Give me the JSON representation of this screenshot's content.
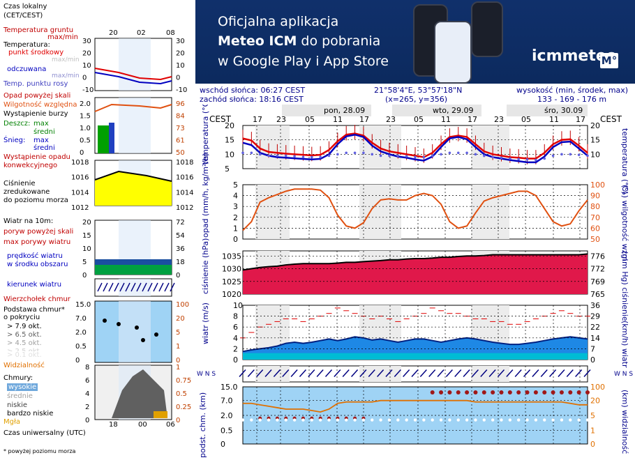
{
  "legend": {
    "time_zone": [
      "Czas lokalny",
      "(CET/CEST)"
    ],
    "top_hours": [
      "20",
      "02",
      "08"
    ],
    "temp_ground": [
      "Temperatura gruntu",
      "max/min"
    ],
    "temp_title": "Temperatura:",
    "temp_mid": "punkt środkowy",
    "temp_maxmin": "max/min",
    "temp_feel": "odczuwana",
    "temp_feel_maxmin": "max/min",
    "temp_dew": "Temp. punktu rosy",
    "temp_left_ticks": [
      "30",
      "20",
      "10",
      "0",
      "-10"
    ],
    "temp_right_ticks": [
      "30",
      "20",
      "10",
      "0",
      "-10"
    ],
    "precip_title": "Opad powyżej skali",
    "humidity": "Wilgotność względna",
    "storm": "Wystąpienie burzy",
    "rain_label": "Deszcz:",
    "rain_max": "max",
    "rain_mean": "średni",
    "snow_label": "Śnieg:",
    "snow_max": "max",
    "snow_mean": "średni",
    "precip_occ": [
      "Wystąpienie opadu",
      "konwekcyjnego"
    ],
    "precip_left_ticks": [
      "2.0",
      "1.5",
      "1.0",
      "0.5",
      "0"
    ],
    "precip_right_ticks": [
      "96",
      "84",
      "73",
      "61",
      "50"
    ],
    "pressure": [
      "Ciśnienie",
      "zredukowane",
      "do poziomu morza"
    ],
    "pressure_left_ticks": [
      "1018",
      "1016",
      "1014",
      "1012"
    ],
    "pressure_right_ticks": [
      "1018",
      "1016",
      "1014",
      "1012"
    ],
    "wind_title": "Wiatr na 10m:",
    "wind_gust_over": "poryw powyżej skali",
    "wind_gust_max": "max porywy wiatru",
    "wind_speed": [
      "prędkość wiatru",
      "w środku obszaru"
    ],
    "wind_left_ticks": [
      "20",
      "15",
      "10",
      "5",
      "0"
    ],
    "wind_right_ticks": [
      "72",
      "54",
      "36",
      "18",
      "0"
    ],
    "wind_dir": "kierunek wiatru",
    "cloud_top": "Wierzchołek chmur",
    "cloud_base": [
      "Podstawa chmur*",
      "o pokryciu"
    ],
    "cloud_okt": [
      "> 7.9 okt.",
      "> 6.5 okt.",
      "> 4.5 okt.",
      "> 2.5 okt.",
      "> 0.1 okt."
    ],
    "visibility": "Widzialność",
    "cloud_left_ticks": [
      "15.0",
      "7.0",
      "2.0",
      "0.5",
      "0"
    ],
    "cloud_right_ticks": [
      "100",
      "20",
      "5",
      "1",
      "0"
    ],
    "clouds_title": "Chmury:",
    "clouds_high": "wysokie",
    "clouds_mid": "średnie",
    "clouds_low": "niskie",
    "clouds_vlow": "bardzo niskie",
    "fog": "Mgła",
    "clouds_left_ticks": [
      "8",
      "6",
      "4",
      "2",
      "0"
    ],
    "clouds_right_ticks": [
      "1",
      "0.75",
      "0.5",
      "0.25",
      "0"
    ],
    "bottom_hours": [
      "18",
      "00",
      "06"
    ],
    "utc": "Czas uniwersalny (UTC)",
    "footnote": "* powyżej poziomu morza"
  },
  "banner": {
    "line1": "Oficjalna aplikacja",
    "line2_bold": "Meteo ICM",
    "line2_rest": " do pobrania",
    "line3": "w Google Play i App Store",
    "logo": "icmmeteo",
    "logo_badge": "M°"
  },
  "info": {
    "sunrise": "wschód słońca: 06:27 CEST",
    "sunset": "zachód słońca: 18:16 CEST",
    "coords": "21°58'4\"E, 53°57'18\"N",
    "grid": "(x=265,  y=356)",
    "elev_label": "wysokość (min, środek, max)",
    "elev_value": "133 - 169 - 176 m"
  },
  "chart_data": {
    "type": "line",
    "time_zone_label": "CEST",
    "days": [
      "pon, 28.09",
      "wto, 29.09",
      "śro, 30.09"
    ],
    "hour_labels": [
      "17",
      "23",
      "05",
      "11",
      "17",
      "23",
      "05",
      "11",
      "17",
      "23",
      "05",
      "11",
      "17"
    ],
    "panels": [
      {
        "name": "temperatura",
        "ylabel_left": "temperatura (°C)",
        "ylabel_right": "temperatura (°C)",
        "ylim": [
          5,
          20
        ],
        "left_ticks": [
          "20",
          "15",
          "10",
          "5"
        ],
        "right_ticks": [
          "20",
          "15",
          "10"
        ],
        "series": [
          {
            "name": "punkt środkowy",
            "color": "#e00000",
            "values": [
              15.5,
              14.8,
              12.0,
              10.8,
              10.5,
              10.2,
              10.0,
              9.8,
              9.6,
              9.8,
              11.5,
              14.5,
              16.8,
              17.2,
              16.5,
              14.0,
              12.0,
              11.0,
              10.5,
              10.0,
              9.5,
              9.0,
              10.5,
              13.5,
              16.0,
              16.5,
              16.0,
              13.5,
              11.0,
              10.0,
              9.5,
              9.0,
              8.8,
              8.5,
              8.5,
              10.5,
              13.5,
              15.0,
              15.2,
              13.0,
              10.5
            ]
          },
          {
            "name": "odczuwana",
            "color": "#0000c0",
            "values": [
              14.0,
              13.2,
              10.5,
              9.5,
              9.0,
              8.8,
              8.6,
              8.4,
              8.2,
              8.4,
              10.0,
              13.5,
              16.2,
              16.8,
              16.0,
              13.0,
              11.0,
              10.0,
              9.2,
              8.8,
              8.2,
              7.8,
              9.2,
              12.5,
              15.5,
              16.0,
              15.2,
              12.5,
              10.0,
              9.0,
              8.5,
              8.0,
              7.6,
              7.2,
              7.2,
              9.2,
              12.5,
              14.2,
              14.4,
              12.0,
              9.5
            ]
          },
          {
            "name": "punkt rosy",
            "color": "#6060e0",
            "values": [
              10.5,
              10.5,
              10.0,
              9.5,
              9.5,
              9.5,
              9.3,
              9.0,
              9.0,
              9.0,
              9.5,
              10.0,
              10.5,
              10.5,
              10.5,
              10.0,
              9.5,
              9.5,
              9.5,
              9.3,
              9.0,
              9.0,
              9.5,
              10.0,
              10.5,
              10.5,
              10.5,
              10.0,
              9.5,
              9.0,
              8.8,
              8.5,
              8.3,
              8.2,
              8.0,
              8.5,
              9.5,
              10.0,
              10.0,
              9.8,
              9.5
            ]
          }
        ]
      },
      {
        "name": "opad",
        "ylabel_left": "opad (mm/h, kg/m²/h)",
        "ylabel_right": "(%) wilgotność wzgl.",
        "ylim": [
          0,
          5
        ],
        "left_ticks": [
          "5",
          "4",
          "3",
          "2",
          "1",
          "0"
        ],
        "right_ticks": [
          "100",
          "90",
          "80",
          "70",
          "60",
          "50"
        ],
        "series": [
          {
            "name": "wilgotność względna",
            "color": "#e05010",
            "y_right_range": [
              50,
              100
            ],
            "values": [
              58,
              66,
              84,
              88,
              91,
              94,
              96,
              96,
              96,
              95,
              88,
              72,
              62,
              60,
              65,
              78,
              86,
              87,
              86,
              86,
              90,
              92,
              90,
              82,
              66,
              60,
              62,
              74,
              85,
              88,
              90,
              92,
              94,
              94,
              90,
              78,
              66,
              62,
              64,
              76,
              86
            ]
          }
        ]
      },
      {
        "name": "ciśnienie",
        "ylabel_left": "ciśnienie (hPa)",
        "ylabel_right": "(mm Hg) ciśnienie",
        "ylim": [
          1020,
          1037
        ],
        "left_ticks": [
          "1035",
          "1030",
          "1025",
          "1020"
        ],
        "right_ticks": [
          "776",
          "772",
          "769",
          "765"
        ],
        "series": [
          {
            "name": "ciśnienie",
            "color": "#000000",
            "values": [
              1029.5,
              1030.0,
              1030.5,
              1030.8,
              1031.0,
              1031.5,
              1031.8,
              1032.0,
              1032.0,
              1032.0,
              1032.0,
              1032.2,
              1032.5,
              1032.5,
              1032.8,
              1033.0,
              1033.2,
              1033.5,
              1033.5,
              1033.8,
              1034.0,
              1034.0,
              1034.2,
              1034.5,
              1034.5,
              1034.8,
              1035.0,
              1035.0,
              1035.2,
              1035.5,
              1035.5,
              1035.5,
              1035.5,
              1035.5,
              1035.5,
              1035.5,
              1035.5,
              1035.5,
              1035.5,
              1035.5,
              1035.8
            ]
          }
        ]
      },
      {
        "name": "wiatr",
        "ylabel_left": "wiatr (m/s)",
        "ylabel_right": "(km/h) wiatr",
        "ylim": [
          0,
          10
        ],
        "left_ticks": [
          "10",
          "8",
          "6",
          "4",
          "2",
          "0"
        ],
        "right_ticks": [
          "36",
          "29",
          "22",
          "14",
          "7",
          "0"
        ],
        "series": [
          {
            "name": "prędkość wiatru",
            "color": "#0050c0",
            "values": [
              1.5,
              1.8,
              2.0,
              2.2,
              2.5,
              3.0,
              3.2,
              3.0,
              3.2,
              3.5,
              3.8,
              3.5,
              3.8,
              4.2,
              4.0,
              3.6,
              3.8,
              3.5,
              3.2,
              3.5,
              3.8,
              3.8,
              3.5,
              3.2,
              3.5,
              3.8,
              4.0,
              3.8,
              3.5,
              3.2,
              3.0,
              2.8,
              2.8,
              3.0,
              3.2,
              3.5,
              3.8,
              4.0,
              4.2,
              4.0,
              3.8
            ]
          },
          {
            "name": "max porywy wiatru",
            "color": "#e00000",
            "values": [
              4.0,
              5.0,
              6.0,
              6.5,
              7.0,
              7.5,
              7.5,
              7.0,
              7.5,
              8.0,
              8.5,
              9.5,
              9.0,
              8.5,
              8.0,
              7.5,
              8.0,
              7.5,
              7.0,
              7.5,
              8.0,
              8.5,
              9.5,
              9.0,
              8.5,
              8.5,
              8.0,
              7.5,
              7.5,
              7.0,
              7.0,
              6.5,
              6.5,
              7.0,
              7.5,
              8.0,
              8.5,
              9.0,
              8.5,
              8.0,
              8.0
            ]
          }
        ]
      },
      {
        "name": "kierunek wiatru",
        "ylabel_left": "W N S",
        "ylabel_right": "W N S"
      },
      {
        "name": "podstawa chmur",
        "ylabel_left": "podst. chm. (km)",
        "ylabel_right": "(km) widzialność",
        "left_ticks": [
          "15.0",
          "7.0",
          "2.0",
          "0.5",
          "0"
        ],
        "right_ticks": [
          "100",
          "20",
          "5",
          "1",
          "0"
        ],
        "series": [
          {
            "name": "widzialność",
            "color": "#e07000",
            "values": [
              12,
              12,
              11,
              10,
              9,
              8,
              8,
              8,
              7,
              6,
              8,
              12,
              13,
              13,
              13,
              13,
              14,
              14,
              14,
              14,
              14,
              14,
              14,
              14,
              14,
              14,
              14,
              13,
              13,
              13,
              13,
              13,
              13,
              13,
              13,
              13,
              13,
              13,
              12,
              11,
              11
            ]
          }
        ]
      }
    ]
  }
}
